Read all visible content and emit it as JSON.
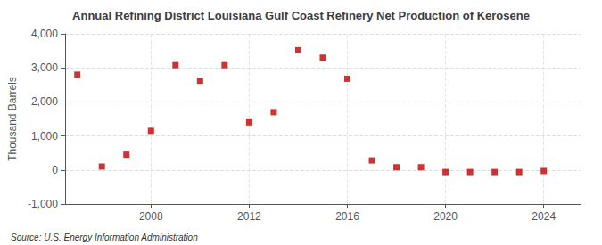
{
  "chart_data": {
    "type": "scatter",
    "title": "Annual Refining District Louisiana Gulf Coast Refinery Net Production of Kerosene",
    "ylabel": "Thousand Barrels",
    "annotations": [
      "Source: U.S. Energy Information Administration"
    ],
    "x": [
      2005,
      2006,
      2007,
      2008,
      2009,
      2010,
      2011,
      2012,
      2013,
      2014,
      2015,
      2016,
      2017,
      2018,
      2019,
      2020,
      2021,
      2022,
      2023,
      2024
    ],
    "values": [
      2800,
      100,
      450,
      1150,
      3080,
      2620,
      3080,
      1400,
      1700,
      3520,
      3300,
      2680,
      280,
      80,
      80,
      -60,
      -60,
      -60,
      -60,
      -30
    ],
    "color": "#c00000",
    "marker": "square",
    "xlim": [
      2004.5,
      2025.5
    ],
    "xticks": [
      2008,
      2012,
      2016,
      2020,
      2024
    ],
    "ylim": [
      -1000,
      4000
    ],
    "yticks": [
      {
        "value": -1000,
        "label": "-1,000"
      },
      0,
      {
        "value": 1000,
        "label": "1,000"
      },
      {
        "value": 2000,
        "label": "2,000"
      },
      {
        "value": 3000,
        "label": "3,000"
      },
      {
        "value": 4000,
        "label": "4,000"
      }
    ],
    "grid": true
  }
}
